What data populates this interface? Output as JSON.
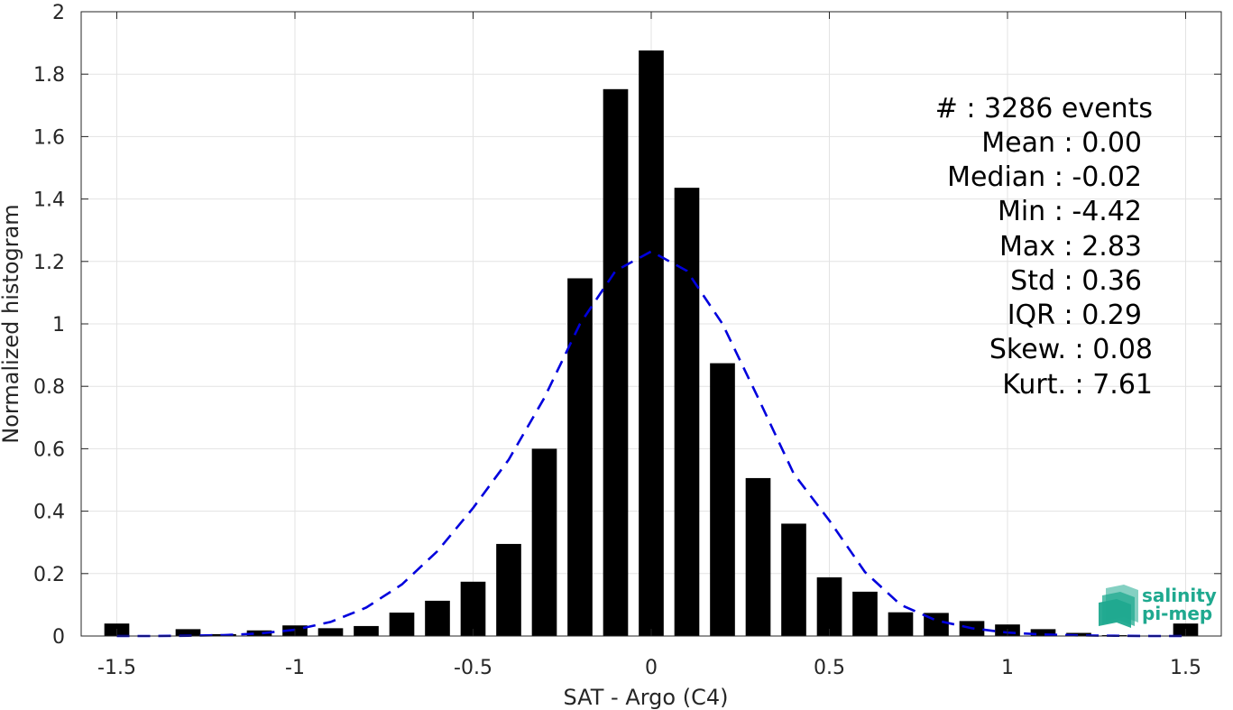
{
  "chart_data": {
    "type": "bar",
    "xlabel": "SAT - Argo (C4)",
    "ylabel": "Normalized histogram",
    "xlim": [
      -1.6,
      1.6
    ],
    "ylim": [
      0,
      2
    ],
    "grid": true,
    "x_ticks": [
      -1.5,
      -1,
      -0.5,
      0,
      0.5,
      1,
      1.5
    ],
    "x_tick_labels": [
      "-1.5",
      "-1",
      "-0.5",
      "0",
      "0.5",
      "1",
      "1.5"
    ],
    "y_ticks": [
      0,
      0.2,
      0.4,
      0.6,
      0.8,
      1,
      1.2,
      1.4,
      1.6,
      1.8,
      2
    ],
    "y_tick_labels": [
      "0",
      "0.2",
      "0.4",
      "0.6",
      "0.8",
      "1",
      "1.2",
      "1.4",
      "1.6",
      "1.8",
      "2"
    ],
    "bar_color": "#000000",
    "bar_width": 0.07,
    "bins": [
      -1.5,
      -1.4,
      -1.3,
      -1.2,
      -1.1,
      -1.0,
      -0.9,
      -0.8,
      -0.7,
      -0.6,
      -0.5,
      -0.4,
      -0.3,
      -0.2,
      -0.1,
      0.0,
      0.1,
      0.2,
      0.3,
      0.4,
      0.5,
      0.6,
      0.7,
      0.8,
      0.9,
      1.0,
      1.1,
      1.2,
      1.3,
      1.5
    ],
    "values": [
      0.04,
      0.0,
      0.022,
      0.006,
      0.018,
      0.034,
      0.025,
      0.032,
      0.075,
      0.113,
      0.174,
      0.295,
      0.6,
      1.146,
      1.752,
      1.876,
      1.436,
      0.874,
      0.506,
      0.36,
      0.188,
      0.142,
      0.076,
      0.074,
      0.048,
      0.037,
      0.022,
      0.01,
      0.003,
      0.04
    ],
    "fit_curve": {
      "style": "dashed",
      "color": "#0000dd",
      "x": [
        -1.5,
        -1.4,
        -1.3,
        -1.2,
        -1.1,
        -1.0,
        -0.9,
        -0.8,
        -0.7,
        -0.6,
        -0.5,
        -0.4,
        -0.3,
        -0.2,
        -0.1,
        0.0,
        0.1,
        0.2,
        0.3,
        0.4,
        0.5,
        0.6,
        0.7,
        0.8,
        0.9,
        1.0,
        1.1,
        1.2,
        1.3,
        1.4,
        1.5
      ],
      "y": [
        0.0,
        0.0,
        0.001,
        0.003,
        0.008,
        0.02,
        0.045,
        0.091,
        0.165,
        0.272,
        0.41,
        0.565,
        0.763,
        1.0,
        1.17,
        1.232,
        1.17,
        1.0,
        0.763,
        0.52,
        0.37,
        0.205,
        0.1,
        0.05,
        0.025,
        0.011,
        0.005,
        0.002,
        0.001,
        0.0,
        0.0
      ]
    }
  },
  "stats": [
    {
      "label": "#  : 3286 events"
    },
    {
      "label": "Mean : 0.00"
    },
    {
      "label": "Median : -0.02"
    },
    {
      "label": "Min : -4.42"
    },
    {
      "label": "Max : 2.83"
    },
    {
      "label": "Std : 0.36"
    },
    {
      "label": "IQR : 0.29"
    },
    {
      "label": "Skew. : 0.08"
    },
    {
      "label": "Kurt. : 7.61"
    }
  ],
  "logo": {
    "line1": "salinity",
    "line2": "pi-mep",
    "color": "#1fa98f"
  }
}
